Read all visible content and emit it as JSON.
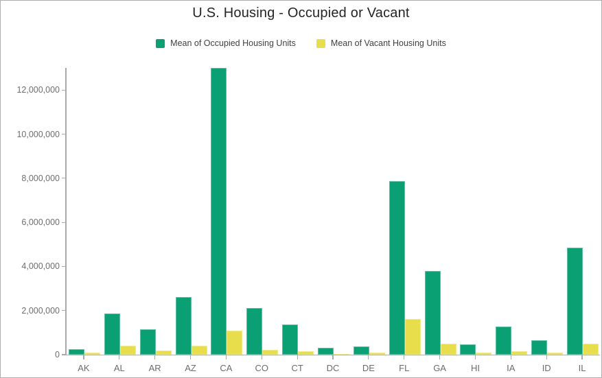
{
  "title": "U.S. Housing - Occupied or Vacant",
  "legend": [
    {
      "label": "Mean of Occupied Housing Units",
      "color": "#0aa073"
    },
    {
      "label": "Mean of Vacant Housing Units",
      "color": "#e8dd4a"
    }
  ],
  "chart_data": {
    "type": "bar",
    "title": "U.S. Housing - Occupied or Vacant",
    "xlabel": "",
    "ylabel": "",
    "grid": false,
    "legend_position": "top",
    "categories": [
      "AK",
      "AL",
      "AR",
      "AZ",
      "CA",
      "CO",
      "CT",
      "DC",
      "DE",
      "FL",
      "GA",
      "HI",
      "IA",
      "ID",
      "IL"
    ],
    "series": [
      {
        "name": "Mean of Occupied Housing Units",
        "color": "#0aa073",
        "values": [
          260000,
          1880000,
          1160000,
          2620000,
          13000000,
          2130000,
          1370000,
          300000,
          380000,
          7880000,
          3800000,
          470000,
          1270000,
          640000,
          4850000
        ]
      },
      {
        "name": "Mean of Vacant Housing Units",
        "color": "#e8dd4a",
        "values": [
          90000,
          400000,
          200000,
          410000,
          1100000,
          230000,
          150000,
          40000,
          80000,
          1620000,
          500000,
          90000,
          150000,
          100000,
          490000
        ]
      }
    ],
    "ylim": [
      0,
      13100000
    ],
    "y_ticks": [
      {
        "value": 0,
        "label": "0"
      },
      {
        "value": 2000000,
        "label": "2,000,000"
      },
      {
        "value": 4000000,
        "label": "4,000,000"
      },
      {
        "value": 6000000,
        "label": "6,000,000"
      },
      {
        "value": 8000000,
        "label": "8,000,000"
      },
      {
        "value": 10000000,
        "label": "10,000,000"
      },
      {
        "value": 12000000,
        "label": "12,000,000"
      }
    ]
  }
}
